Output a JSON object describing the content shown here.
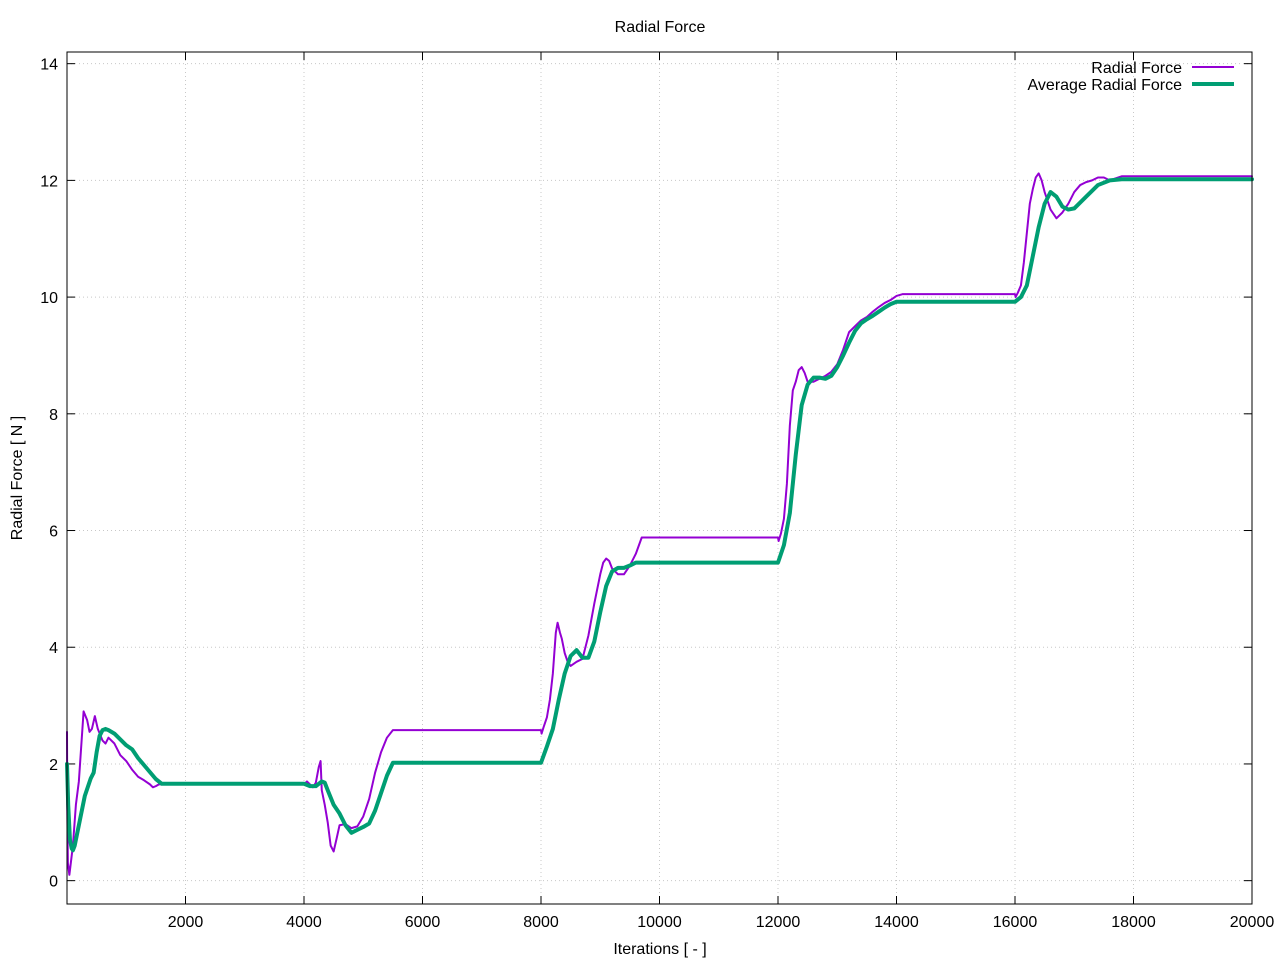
{
  "chart_data": {
    "type": "line",
    "title": "Radial Force",
    "xlabel": "Iterations [ - ]",
    "ylabel": "Radial Force [ N ]",
    "xlim": [
      0,
      20000
    ],
    "ylim": [
      -0.4,
      14.2
    ],
    "xticks": [
      2000,
      4000,
      6000,
      8000,
      10000,
      12000,
      14000,
      16000,
      18000,
      20000
    ],
    "yticks": [
      0,
      2,
      4,
      6,
      8,
      10,
      12,
      14
    ],
    "grid": true,
    "legend_position": "top-right",
    "series": [
      {
        "name": "Radial Force",
        "color": "#9400d3",
        "line_width": 2,
        "points": [
          [
            0,
            2.55
          ],
          [
            5,
            1.2
          ],
          [
            15,
            0.3
          ],
          [
            40,
            0.1
          ],
          [
            100,
            0.6
          ],
          [
            150,
            1.3
          ],
          [
            200,
            1.7
          ],
          [
            280,
            2.9
          ],
          [
            340,
            2.75
          ],
          [
            380,
            2.55
          ],
          [
            420,
            2.6
          ],
          [
            470,
            2.82
          ],
          [
            520,
            2.6
          ],
          [
            600,
            2.4
          ],
          [
            650,
            2.35
          ],
          [
            700,
            2.45
          ],
          [
            800,
            2.35
          ],
          [
            900,
            2.15
          ],
          [
            1000,
            2.05
          ],
          [
            1100,
            1.9
          ],
          [
            1200,
            1.78
          ],
          [
            1300,
            1.72
          ],
          [
            1400,
            1.65
          ],
          [
            1450,
            1.6
          ],
          [
            1500,
            1.62
          ],
          [
            1550,
            1.65
          ],
          [
            4000,
            1.65
          ],
          [
            4050,
            1.7
          ],
          [
            4100,
            1.65
          ],
          [
            4150,
            1.6
          ],
          [
            4200,
            1.68
          ],
          [
            4250,
            1.95
          ],
          [
            4280,
            2.05
          ],
          [
            4300,
            1.55
          ],
          [
            4350,
            1.3
          ],
          [
            4400,
            1.0
          ],
          [
            4450,
            0.6
          ],
          [
            4500,
            0.5
          ],
          [
            4550,
            0.72
          ],
          [
            4600,
            0.95
          ],
          [
            4700,
            0.97
          ],
          [
            4800,
            0.9
          ],
          [
            4900,
            0.93
          ],
          [
            5000,
            1.1
          ],
          [
            5100,
            1.4
          ],
          [
            5200,
            1.85
          ],
          [
            5300,
            2.2
          ],
          [
            5400,
            2.45
          ],
          [
            5500,
            2.58
          ],
          [
            8000,
            2.58
          ],
          [
            8010,
            2.52
          ],
          [
            8050,
            2.65
          ],
          [
            8100,
            2.8
          ],
          [
            8150,
            3.1
          ],
          [
            8200,
            3.55
          ],
          [
            8250,
            4.25
          ],
          [
            8280,
            4.42
          ],
          [
            8320,
            4.25
          ],
          [
            8350,
            4.15
          ],
          [
            8400,
            3.9
          ],
          [
            8450,
            3.75
          ],
          [
            8500,
            3.68
          ],
          [
            8600,
            3.75
          ],
          [
            8700,
            3.8
          ],
          [
            8800,
            4.2
          ],
          [
            8900,
            4.75
          ],
          [
            9000,
            5.25
          ],
          [
            9050,
            5.45
          ],
          [
            9100,
            5.52
          ],
          [
            9150,
            5.48
          ],
          [
            9200,
            5.35
          ],
          [
            9300,
            5.25
          ],
          [
            9400,
            5.25
          ],
          [
            9500,
            5.4
          ],
          [
            9600,
            5.6
          ],
          [
            9700,
            5.88
          ],
          [
            12000,
            5.88
          ],
          [
            12010,
            5.82
          ],
          [
            12050,
            5.95
          ],
          [
            12100,
            6.2
          ],
          [
            12150,
            6.8
          ],
          [
            12200,
            7.8
          ],
          [
            12250,
            8.4
          ],
          [
            12300,
            8.55
          ],
          [
            12350,
            8.75
          ],
          [
            12400,
            8.8
          ],
          [
            12450,
            8.7
          ],
          [
            12500,
            8.55
          ],
          [
            12600,
            8.55
          ],
          [
            12700,
            8.6
          ],
          [
            12800,
            8.65
          ],
          [
            12900,
            8.72
          ],
          [
            13000,
            8.85
          ],
          [
            13100,
            9.1
          ],
          [
            13200,
            9.4
          ],
          [
            13300,
            9.5
          ],
          [
            13400,
            9.6
          ],
          [
            13500,
            9.66
          ],
          [
            13600,
            9.75
          ],
          [
            13700,
            9.83
          ],
          [
            13800,
            9.9
          ],
          [
            13900,
            9.95
          ],
          [
            14000,
            10.02
          ],
          [
            14100,
            10.05
          ],
          [
            16000,
            10.05
          ],
          [
            16010,
            10.0
          ],
          [
            16050,
            10.08
          ],
          [
            16100,
            10.2
          ],
          [
            16150,
            10.6
          ],
          [
            16200,
            11.1
          ],
          [
            16250,
            11.6
          ],
          [
            16300,
            11.85
          ],
          [
            16350,
            12.05
          ],
          [
            16400,
            12.12
          ],
          [
            16450,
            12.0
          ],
          [
            16500,
            11.8
          ],
          [
            16600,
            11.5
          ],
          [
            16700,
            11.35
          ],
          [
            16800,
            11.45
          ],
          [
            16900,
            11.6
          ],
          [
            17000,
            11.8
          ],
          [
            17100,
            11.92
          ],
          [
            17200,
            11.97
          ],
          [
            17300,
            12.0
          ],
          [
            17400,
            12.05
          ],
          [
            17500,
            12.05
          ],
          [
            17600,
            12.0
          ],
          [
            17800,
            12.07
          ],
          [
            18000,
            12.07
          ],
          [
            20000,
            12.07
          ]
        ]
      },
      {
        "name": "Average Radial Force",
        "color": "#009e73",
        "line_width": 4,
        "points": [
          [
            0,
            2.0
          ],
          [
            20,
            1.3
          ],
          [
            50,
            0.7
          ],
          [
            80,
            0.55
          ],
          [
            100,
            0.52
          ],
          [
            130,
            0.6
          ],
          [
            200,
            0.95
          ],
          [
            300,
            1.45
          ],
          [
            400,
            1.75
          ],
          [
            450,
            1.85
          ],
          [
            500,
            2.2
          ],
          [
            550,
            2.48
          ],
          [
            600,
            2.58
          ],
          [
            650,
            2.6
          ],
          [
            700,
            2.58
          ],
          [
            800,
            2.52
          ],
          [
            900,
            2.42
          ],
          [
            1000,
            2.32
          ],
          [
            1100,
            2.25
          ],
          [
            1200,
            2.1
          ],
          [
            1300,
            1.98
          ],
          [
            1400,
            1.86
          ],
          [
            1500,
            1.74
          ],
          [
            1600,
            1.66
          ],
          [
            4000,
            1.66
          ],
          [
            4100,
            1.62
          ],
          [
            4200,
            1.62
          ],
          [
            4300,
            1.7
          ],
          [
            4350,
            1.68
          ],
          [
            4400,
            1.55
          ],
          [
            4500,
            1.3
          ],
          [
            4600,
            1.15
          ],
          [
            4700,
            0.95
          ],
          [
            4800,
            0.82
          ],
          [
            4900,
            0.87
          ],
          [
            5000,
            0.92
          ],
          [
            5100,
            0.98
          ],
          [
            5200,
            1.2
          ],
          [
            5300,
            1.5
          ],
          [
            5400,
            1.8
          ],
          [
            5500,
            2.02
          ],
          [
            8000,
            2.02
          ],
          [
            8100,
            2.3
          ],
          [
            8200,
            2.6
          ],
          [
            8300,
            3.1
          ],
          [
            8400,
            3.55
          ],
          [
            8500,
            3.85
          ],
          [
            8600,
            3.95
          ],
          [
            8700,
            3.82
          ],
          [
            8800,
            3.82
          ],
          [
            8900,
            4.1
          ],
          [
            9000,
            4.6
          ],
          [
            9100,
            5.05
          ],
          [
            9200,
            5.3
          ],
          [
            9300,
            5.36
          ],
          [
            9400,
            5.36
          ],
          [
            9500,
            5.4
          ],
          [
            9600,
            5.45
          ],
          [
            12000,
            5.45
          ],
          [
            12100,
            5.75
          ],
          [
            12200,
            6.3
          ],
          [
            12300,
            7.3
          ],
          [
            12400,
            8.15
          ],
          [
            12500,
            8.5
          ],
          [
            12600,
            8.62
          ],
          [
            12700,
            8.62
          ],
          [
            12800,
            8.6
          ],
          [
            12900,
            8.65
          ],
          [
            13000,
            8.8
          ],
          [
            13100,
            9.0
          ],
          [
            13200,
            9.22
          ],
          [
            13300,
            9.42
          ],
          [
            13400,
            9.55
          ],
          [
            13500,
            9.62
          ],
          [
            13600,
            9.68
          ],
          [
            13700,
            9.75
          ],
          [
            13800,
            9.82
          ],
          [
            13900,
            9.88
          ],
          [
            14000,
            9.92
          ],
          [
            16000,
            9.92
          ],
          [
            16100,
            10.0
          ],
          [
            16200,
            10.2
          ],
          [
            16300,
            10.7
          ],
          [
            16400,
            11.2
          ],
          [
            16500,
            11.6
          ],
          [
            16600,
            11.8
          ],
          [
            16700,
            11.72
          ],
          [
            16800,
            11.55
          ],
          [
            16900,
            11.5
          ],
          [
            17000,
            11.52
          ],
          [
            17200,
            11.72
          ],
          [
            17400,
            11.92
          ],
          [
            17600,
            12.0
          ],
          [
            17800,
            12.02
          ],
          [
            18000,
            12.02
          ],
          [
            20000,
            12.02
          ]
        ]
      }
    ]
  }
}
